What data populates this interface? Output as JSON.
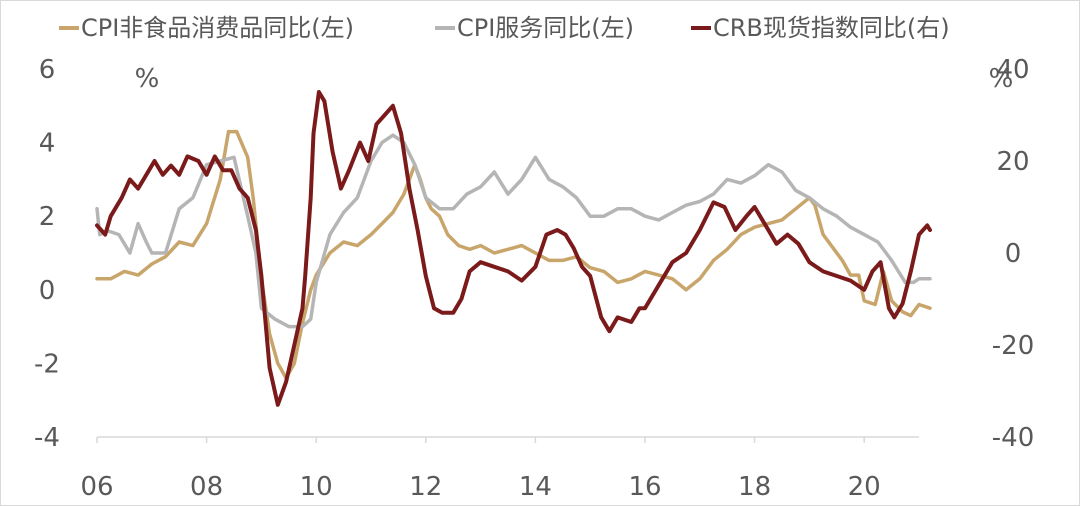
{
  "chart_data": {
    "type": "line",
    "title": "",
    "legend": {
      "placement": "top",
      "entries": [
        {
          "label": "CPI非食品消费品同比(左)",
          "color": "#C8A56B"
        },
        {
          "label": "CPI服务同比(左)",
          "color": "#B5B5B5"
        },
        {
          "label": "CRB现货指数同比(右)",
          "color": "#7B1A1A"
        }
      ]
    },
    "x_axis": {
      "range": [
        2006,
        2021
      ],
      "tick_labels": [
        "06",
        "08",
        "10",
        "12",
        "14",
        "16",
        "18",
        "20"
      ],
      "tick_values": [
        2006,
        2008,
        2010,
        2012,
        2014,
        2016,
        2018,
        2020
      ]
    },
    "y_left": {
      "unit": "%",
      "range": [
        -4,
        6
      ],
      "tick_labels": [
        "6",
        "4",
        "2",
        "0",
        "-2",
        "-4"
      ],
      "tick_values": [
        6,
        4,
        2,
        0,
        -2,
        -4
      ]
    },
    "y_right": {
      "unit": "%",
      "range": [
        -40,
        40
      ],
      "tick_labels": [
        "40",
        "20",
        "0",
        "-20",
        "-40"
      ],
      "tick_values": [
        40,
        20,
        0,
        -20,
        -40
      ]
    },
    "grid": false,
    "series": [
      {
        "name": "CPI非食品消费品同比(左)",
        "axis": "left",
        "color": "#C8A56B",
        "points": [
          [
            2006.0,
            0.3
          ],
          [
            2006.25,
            0.3
          ],
          [
            2006.5,
            0.5
          ],
          [
            2006.75,
            0.4
          ],
          [
            2007.0,
            0.7
          ],
          [
            2007.25,
            0.9
          ],
          [
            2007.5,
            1.3
          ],
          [
            2007.75,
            1.2
          ],
          [
            2008.0,
            1.8
          ],
          [
            2008.25,
            3.0
          ],
          [
            2008.4,
            4.3
          ],
          [
            2008.55,
            4.3
          ],
          [
            2008.75,
            3.6
          ],
          [
            2008.85,
            2.5
          ],
          [
            2009.0,
            0.3
          ],
          [
            2009.15,
            -1.2
          ],
          [
            2009.3,
            -2.0
          ],
          [
            2009.45,
            -2.4
          ],
          [
            2009.6,
            -2.0
          ],
          [
            2009.75,
            -0.9
          ],
          [
            2009.9,
            0.0
          ],
          [
            2010.0,
            0.4
          ],
          [
            2010.25,
            1.0
          ],
          [
            2010.5,
            1.3
          ],
          [
            2010.75,
            1.2
          ],
          [
            2011.0,
            1.5
          ],
          [
            2011.2,
            1.8
          ],
          [
            2011.4,
            2.1
          ],
          [
            2011.6,
            2.6
          ],
          [
            2011.8,
            3.4
          ],
          [
            2011.9,
            3.0
          ],
          [
            2012.0,
            2.5
          ],
          [
            2012.1,
            2.2
          ],
          [
            2012.25,
            2.0
          ],
          [
            2012.4,
            1.5
          ],
          [
            2012.6,
            1.2
          ],
          [
            2012.8,
            1.1
          ],
          [
            2013.0,
            1.2
          ],
          [
            2013.25,
            1.0
          ],
          [
            2013.5,
            1.1
          ],
          [
            2013.75,
            1.2
          ],
          [
            2014.0,
            1.0
          ],
          [
            2014.25,
            0.8
          ],
          [
            2014.5,
            0.8
          ],
          [
            2014.75,
            0.9
          ],
          [
            2015.0,
            0.6
          ],
          [
            2015.25,
            0.5
          ],
          [
            2015.5,
            0.2
          ],
          [
            2015.75,
            0.3
          ],
          [
            2016.0,
            0.5
          ],
          [
            2016.25,
            0.4
          ],
          [
            2016.5,
            0.3
          ],
          [
            2016.75,
            0.0
          ],
          [
            2017.0,
            0.3
          ],
          [
            2017.25,
            0.8
          ],
          [
            2017.5,
            1.1
          ],
          [
            2017.75,
            1.5
          ],
          [
            2018.0,
            1.7
          ],
          [
            2018.25,
            1.8
          ],
          [
            2018.5,
            1.9
          ],
          [
            2018.75,
            2.2
          ],
          [
            2019.0,
            2.5
          ],
          [
            2019.1,
            2.3
          ],
          [
            2019.25,
            1.5
          ],
          [
            2019.4,
            1.2
          ],
          [
            2019.6,
            0.8
          ],
          [
            2019.75,
            0.4
          ],
          [
            2019.9,
            0.4
          ],
          [
            2020.0,
            -0.3
          ],
          [
            2020.2,
            -0.4
          ],
          [
            2020.35,
            0.5
          ],
          [
            2020.5,
            -0.3
          ],
          [
            2020.7,
            -0.6
          ],
          [
            2020.85,
            -0.7
          ],
          [
            2021.0,
            -0.4
          ],
          [
            2021.2,
            -0.5
          ]
        ]
      },
      {
        "name": "CPI服务同比(左)",
        "axis": "left",
        "color": "#B5B5B5",
        "points": [
          [
            2006.0,
            2.2
          ],
          [
            2006.05,
            1.5
          ],
          [
            2006.2,
            1.6
          ],
          [
            2006.4,
            1.5
          ],
          [
            2006.6,
            1.0
          ],
          [
            2006.75,
            1.8
          ],
          [
            2006.9,
            1.3
          ],
          [
            2007.0,
            1.0
          ],
          [
            2007.25,
            1.0
          ],
          [
            2007.5,
            2.2
          ],
          [
            2007.75,
            2.5
          ],
          [
            2008.0,
            3.4
          ],
          [
            2008.25,
            3.5
          ],
          [
            2008.5,
            3.6
          ],
          [
            2008.75,
            2.0
          ],
          [
            2008.9,
            1.0
          ],
          [
            2009.0,
            -0.5
          ],
          [
            2009.25,
            -0.8
          ],
          [
            2009.5,
            -1.0
          ],
          [
            2009.75,
            -1.0
          ],
          [
            2009.9,
            -0.8
          ],
          [
            2010.0,
            0.2
          ],
          [
            2010.25,
            1.5
          ],
          [
            2010.5,
            2.1
          ],
          [
            2010.75,
            2.5
          ],
          [
            2011.0,
            3.5
          ],
          [
            2011.2,
            4.0
          ],
          [
            2011.4,
            4.2
          ],
          [
            2011.6,
            4.0
          ],
          [
            2011.8,
            3.4
          ],
          [
            2012.0,
            2.5
          ],
          [
            2012.25,
            2.2
          ],
          [
            2012.5,
            2.2
          ],
          [
            2012.75,
            2.6
          ],
          [
            2013.0,
            2.8
          ],
          [
            2013.25,
            3.2
          ],
          [
            2013.5,
            2.6
          ],
          [
            2013.75,
            3.0
          ],
          [
            2014.0,
            3.6
          ],
          [
            2014.25,
            3.0
          ],
          [
            2014.5,
            2.8
          ],
          [
            2014.75,
            2.5
          ],
          [
            2015.0,
            2.0
          ],
          [
            2015.25,
            2.0
          ],
          [
            2015.5,
            2.2
          ],
          [
            2015.75,
            2.2
          ],
          [
            2016.0,
            2.0
          ],
          [
            2016.25,
            1.9
          ],
          [
            2016.5,
            2.1
          ],
          [
            2016.75,
            2.3
          ],
          [
            2017.0,
            2.4
          ],
          [
            2017.25,
            2.6
          ],
          [
            2017.5,
            3.0
          ],
          [
            2017.75,
            2.9
          ],
          [
            2018.0,
            3.1
          ],
          [
            2018.25,
            3.4
          ],
          [
            2018.5,
            3.2
          ],
          [
            2018.75,
            2.7
          ],
          [
            2019.0,
            2.5
          ],
          [
            2019.25,
            2.2
          ],
          [
            2019.5,
            2.0
          ],
          [
            2019.75,
            1.7
          ],
          [
            2020.0,
            1.5
          ],
          [
            2020.25,
            1.3
          ],
          [
            2020.5,
            0.8
          ],
          [
            2020.75,
            0.2
          ],
          [
            2020.9,
            0.2
          ],
          [
            2021.0,
            0.3
          ],
          [
            2021.2,
            0.3
          ]
        ]
      },
      {
        "name": "CRB现货指数同比(右)",
        "axis": "right",
        "color": "#7B1A1A",
        "points": [
          [
            2006.0,
            6
          ],
          [
            2006.15,
            4
          ],
          [
            2006.25,
            8
          ],
          [
            2006.45,
            12
          ],
          [
            2006.6,
            16
          ],
          [
            2006.75,
            14
          ],
          [
            2006.9,
            17
          ],
          [
            2007.05,
            20
          ],
          [
            2007.2,
            17
          ],
          [
            2007.35,
            19
          ],
          [
            2007.5,
            17
          ],
          [
            2007.65,
            21
          ],
          [
            2007.85,
            20
          ],
          [
            2008.0,
            17
          ],
          [
            2008.15,
            21
          ],
          [
            2008.3,
            18
          ],
          [
            2008.45,
            18
          ],
          [
            2008.6,
            14
          ],
          [
            2008.75,
            12
          ],
          [
            2008.9,
            5
          ],
          [
            2009.0,
            -5
          ],
          [
            2009.15,
            -25
          ],
          [
            2009.3,
            -33
          ],
          [
            2009.45,
            -28
          ],
          [
            2009.6,
            -20
          ],
          [
            2009.75,
            -12
          ],
          [
            2009.8,
            -5
          ],
          [
            2009.9,
            12
          ],
          [
            2009.95,
            26
          ],
          [
            2010.05,
            35
          ],
          [
            2010.15,
            33
          ],
          [
            2010.3,
            22
          ],
          [
            2010.45,
            14
          ],
          [
            2010.6,
            18
          ],
          [
            2010.8,
            24
          ],
          [
            2010.95,
            20
          ],
          [
            2011.1,
            28
          ],
          [
            2011.25,
            30
          ],
          [
            2011.4,
            32
          ],
          [
            2011.55,
            26
          ],
          [
            2011.7,
            14
          ],
          [
            2011.85,
            5
          ],
          [
            2012.0,
            -5
          ],
          [
            2012.15,
            -12
          ],
          [
            2012.3,
            -13
          ],
          [
            2012.5,
            -13
          ],
          [
            2012.65,
            -10
          ],
          [
            2012.8,
            -4
          ],
          [
            2013.0,
            -2
          ],
          [
            2013.25,
            -3
          ],
          [
            2013.5,
            -4
          ],
          [
            2013.75,
            -6
          ],
          [
            2014.0,
            -3
          ],
          [
            2014.2,
            4
          ],
          [
            2014.4,
            5
          ],
          [
            2014.55,
            4
          ],
          [
            2014.7,
            1
          ],
          [
            2014.85,
            -3
          ],
          [
            2015.0,
            -5
          ],
          [
            2015.2,
            -14
          ],
          [
            2015.35,
            -17
          ],
          [
            2015.5,
            -14
          ],
          [
            2015.75,
            -15
          ],
          [
            2015.9,
            -12
          ],
          [
            2016.0,
            -12
          ],
          [
            2016.25,
            -7
          ],
          [
            2016.5,
            -2
          ],
          [
            2016.75,
            0
          ],
          [
            2017.0,
            5
          ],
          [
            2017.25,
            11
          ],
          [
            2017.45,
            10
          ],
          [
            2017.65,
            5
          ],
          [
            2017.85,
            8
          ],
          [
            2018.0,
            10
          ],
          [
            2018.2,
            6
          ],
          [
            2018.4,
            2
          ],
          [
            2018.6,
            4
          ],
          [
            2018.8,
            2
          ],
          [
            2019.0,
            -2
          ],
          [
            2019.25,
            -4
          ],
          [
            2019.5,
            -5
          ],
          [
            2019.75,
            -6
          ],
          [
            2020.0,
            -8
          ],
          [
            2020.15,
            -4
          ],
          [
            2020.3,
            -2
          ],
          [
            2020.45,
            -12
          ],
          [
            2020.55,
            -14
          ],
          [
            2020.7,
            -11
          ],
          [
            2020.85,
            -4
          ],
          [
            2021.0,
            4
          ],
          [
            2021.15,
            6
          ],
          [
            2021.2,
            5
          ]
        ]
      }
    ]
  }
}
